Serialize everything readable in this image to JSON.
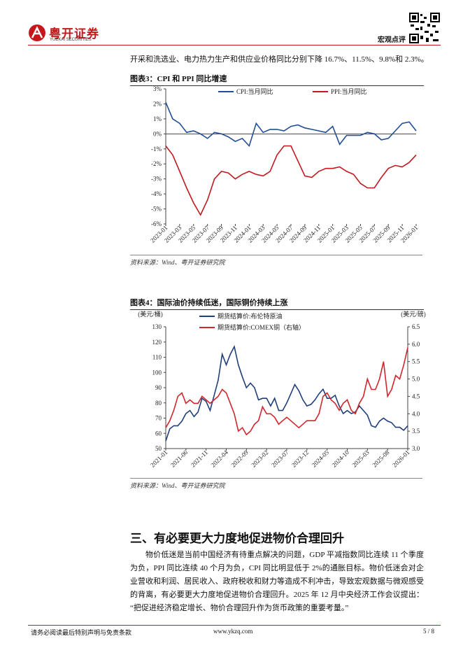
{
  "header": {
    "logo_cn": "粤开证券",
    "logo_en": "YUEKAI SECURITIES",
    "section": "宏观点评"
  },
  "intro": "开采和洗选业、电力热力生产和供应业价格同比分别下降 16.7%、11.5%、9.8%和 2.3%。",
  "chart_data": [
    {
      "type": "line",
      "title": "图表3：CPI 和 PPI 同比增速",
      "source": "资料来源：Wind、粤开证券研究院",
      "categories": [
        "2023-01",
        null,
        "2023-03",
        null,
        "2023-05",
        null,
        "2023-07",
        null,
        "2023-09",
        null,
        "2023-11",
        null,
        "2024-01",
        null,
        "2024-03",
        null,
        "2024-05",
        null,
        "2024-07",
        null,
        "2024-09",
        null,
        "2024-11",
        null,
        "2025-01",
        null,
        "2025-03",
        null,
        "2025-05",
        null,
        "2025-07",
        null,
        "2025-09",
        null,
        "2025-11",
        null,
        "2026-01"
      ],
      "series": [
        {
          "name": "CPI:当月同比",
          "color": "#1f4e96",
          "values": [
            2.1,
            1.0,
            0.7,
            0.1,
            0.2,
            0.0,
            -0.3,
            0.1,
            0.0,
            -0.2,
            -0.5,
            -0.3,
            -0.8,
            0.7,
            0.1,
            0.3,
            0.3,
            0.2,
            0.5,
            0.6,
            0.4,
            0.3,
            0.2,
            0.1,
            0.5,
            -0.7,
            -0.1,
            -0.1,
            -0.1,
            0.1,
            0.0,
            -0.4,
            -0.3,
            0.2,
            0.7,
            0.8,
            0.2
          ]
        },
        {
          "name": "PPI:当月同比",
          "color": "#c0191f",
          "values": [
            -0.8,
            -1.4,
            -2.5,
            -3.6,
            -4.6,
            -5.4,
            -4.4,
            -3.0,
            -2.5,
            -2.6,
            -3.0,
            -2.7,
            -2.5,
            -2.7,
            -2.8,
            -2.5,
            -1.4,
            -0.8,
            -0.8,
            -1.8,
            -2.8,
            -2.9,
            -2.5,
            -2.3,
            -2.3,
            -2.2,
            -2.5,
            -2.7,
            -3.3,
            -3.6,
            -3.6,
            -2.9,
            -2.3,
            -2.1,
            -2.2,
            -1.9,
            -1.4
          ]
        }
      ],
      "ylim": [
        -6,
        3
      ],
      "yticks": [
        {
          "value": 3,
          "label": "3%"
        },
        {
          "value": 2,
          "label": "2%"
        },
        {
          "value": 1,
          "label": "1%"
        },
        {
          "value": 0,
          "label": "0%"
        },
        {
          "value": -1,
          "label": "-1%"
        },
        {
          "value": -2,
          "label": "-2%"
        },
        {
          "value": -3,
          "label": "-3%"
        },
        {
          "value": -4,
          "label": "-4%"
        },
        {
          "value": -5,
          "label": "-5%"
        },
        {
          "value": -6,
          "label": "-6%"
        }
      ],
      "grid": false
    },
    {
      "type": "line",
      "title": "图表4：国际油价持续低迷，国际铜价持续上涨",
      "source": "资料来源：Wind、粤开证券研究院",
      "y_label": "(美元/桶)",
      "y2_label": "(美元/磅)",
      "categories": [
        "2021-01",
        null,
        null,
        null,
        null,
        "2021-06",
        null,
        null,
        null,
        null,
        "2021-11",
        null,
        null,
        null,
        null,
        "2022-04",
        null,
        null,
        null,
        null,
        "2022-09",
        null,
        null,
        null,
        null,
        "2023-02",
        null,
        null,
        null,
        null,
        "2023-07",
        null,
        null,
        null,
        null,
        "2023-12",
        null,
        null,
        null,
        null,
        "2024-05",
        null,
        null,
        null,
        null,
        "2024-10",
        null,
        null,
        null,
        null,
        "2025-03",
        null,
        null,
        null,
        null,
        "2025-08",
        null,
        null,
        null,
        null,
        "2026-01"
      ],
      "series": [
        {
          "name": "期货结算价:布伦特原油",
          "color": "#1f3f7a",
          "values": [
            55,
            63,
            65,
            65,
            68,
            73,
            75,
            71,
            74,
            83,
            81,
            75,
            85,
            95,
            112,
            105,
            112,
            117,
            105,
            97,
            90,
            93,
            90,
            82,
            83,
            83,
            78,
            83,
            75,
            75,
            80,
            86,
            92,
            88,
            82,
            78,
            79,
            82,
            86,
            89,
            83,
            83,
            85,
            78,
            73,
            75,
            73,
            74,
            78,
            75,
            72,
            65,
            64,
            68,
            70,
            68,
            67,
            64,
            64,
            62,
            65
          ]
        },
        {
          "name": "期货结算价:COMEX铜（右轴）",
          "color": "#d0262d",
          "axis": "y2",
          "values": [
            3.6,
            3.8,
            4.1,
            4.5,
            4.6,
            4.3,
            4.4,
            4.3,
            4.3,
            4.5,
            4.4,
            4.3,
            4.4,
            4.5,
            4.7,
            4.6,
            4.3,
            4.0,
            3.5,
            3.6,
            3.4,
            3.5,
            3.7,
            3.8,
            4.2,
            4.0,
            4.0,
            3.9,
            3.7,
            3.8,
            3.9,
            3.8,
            3.7,
            3.6,
            3.7,
            3.8,
            3.8,
            3.8,
            4.0,
            4.5,
            4.6,
            4.4,
            4.3,
            4.1,
            4.3,
            4.4,
            4.1,
            4.0,
            4.3,
            4.5,
            5.0,
            4.7,
            4.7,
            5.0,
            5.5,
            4.5,
            4.7,
            5.1,
            5.0,
            5.4,
            5.9
          ]
        }
      ],
      "ylim": [
        50,
        130
      ],
      "yticks": [
        130,
        120,
        110,
        100,
        90,
        80,
        70,
        60,
        50
      ],
      "y2lim": [
        3,
        6.5
      ],
      "y2ticks": [
        6.5,
        {
          "value": 6,
          "label": "6.0"
        },
        5.5,
        {
          "value": 5,
          "label": "5.0"
        },
        4.5,
        {
          "value": 4,
          "label": "4.0"
        },
        3.5,
        {
          "value": 3,
          "label": "3.0"
        }
      ],
      "grid": false
    }
  ],
  "section_title": "三、有必要更大力度地促进物价合理回升",
  "paragraph": "物价低迷是当前中国经济有待重点解决的问题，GDP 平减指数同比连续 11 个季度为负，PPI 同比连续 40 个月为负，CPI 同比明显低于 2%的通胀目标。物价低迷会对企业营收和利润、居民收入、政府税收和财力等造成不利冲击，导致宏观数据与微观感受的背离，有必要更大力度地促进物价合理回升。2025 年 12 月中央经济工作会议提出：“把促进经济稳定增长、物价合理回升作为货币政策的重要考量。”",
  "footer": {
    "disclaimer": "请务必阅读最后特别声明与免责条款",
    "website": "www.ykzq.com",
    "page": "5 / 8"
  }
}
